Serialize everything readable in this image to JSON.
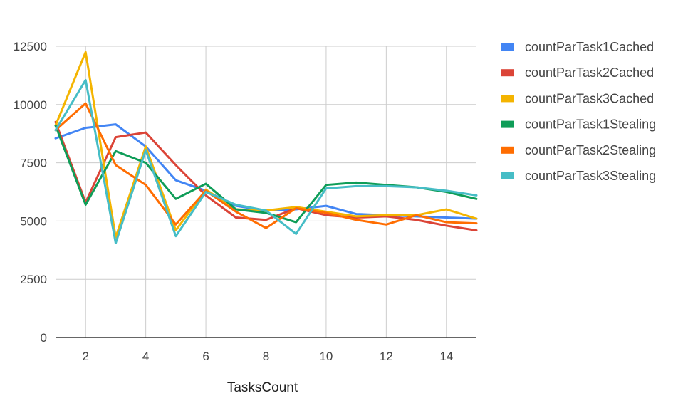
{
  "chart_data": {
    "type": "line",
    "title": "",
    "xlabel": "TasksCount",
    "ylabel": "",
    "xlim": [
      1,
      15
    ],
    "ylim": [
      0,
      12500
    ],
    "x_ticks": [
      2,
      4,
      6,
      8,
      10,
      12,
      14
    ],
    "y_ticks": [
      0,
      2500,
      5000,
      7500,
      10000,
      12500
    ],
    "grid": true,
    "legend_position": "right",
    "x": [
      1,
      2,
      3,
      4,
      5,
      6,
      7,
      8,
      9,
      10,
      11,
      12,
      13,
      14,
      15
    ],
    "series": [
      {
        "name": "countParTask1Cached",
        "color": "#4285f4",
        "values": [
          8550,
          9000,
          9150,
          8200,
          6750,
          6300,
          5650,
          5450,
          5500,
          5650,
          5300,
          5250,
          5200,
          5150,
          5100
        ]
      },
      {
        "name": "countParTask2Cached",
        "color": "#db4437",
        "values": [
          9250,
          5800,
          8600,
          8800,
          7400,
          6100,
          5150,
          5050,
          5550,
          5250,
          5150,
          5200,
          5050,
          4800,
          4600
        ]
      },
      {
        "name": "countParTask3Cached",
        "color": "#f4b400",
        "values": [
          9100,
          12250,
          4300,
          8200,
          4600,
          6350,
          5500,
          5450,
          5600,
          5400,
          5200,
          5250,
          5250,
          5500,
          5100
        ]
      },
      {
        "name": "countParTask1Stealing",
        "color": "#0f9d58",
        "values": [
          9100,
          5700,
          8000,
          7500,
          5950,
          6600,
          5500,
          5350,
          4950,
          6550,
          6650,
          6550,
          6450,
          6250,
          5950
        ]
      },
      {
        "name": "countParTask2Stealing",
        "color": "#ff6d01",
        "values": [
          8900,
          10050,
          7400,
          6550,
          4850,
          6300,
          5400,
          4700,
          5550,
          5350,
          5050,
          4850,
          5250,
          4950,
          4900
        ]
      },
      {
        "name": "countParTask3Stealing",
        "color": "#46bdc6",
        "values": [
          8900,
          11050,
          4050,
          8050,
          4350,
          6250,
          5700,
          5450,
          4450,
          6400,
          6500,
          6500,
          6450,
          6300,
          6100
        ]
      }
    ]
  }
}
